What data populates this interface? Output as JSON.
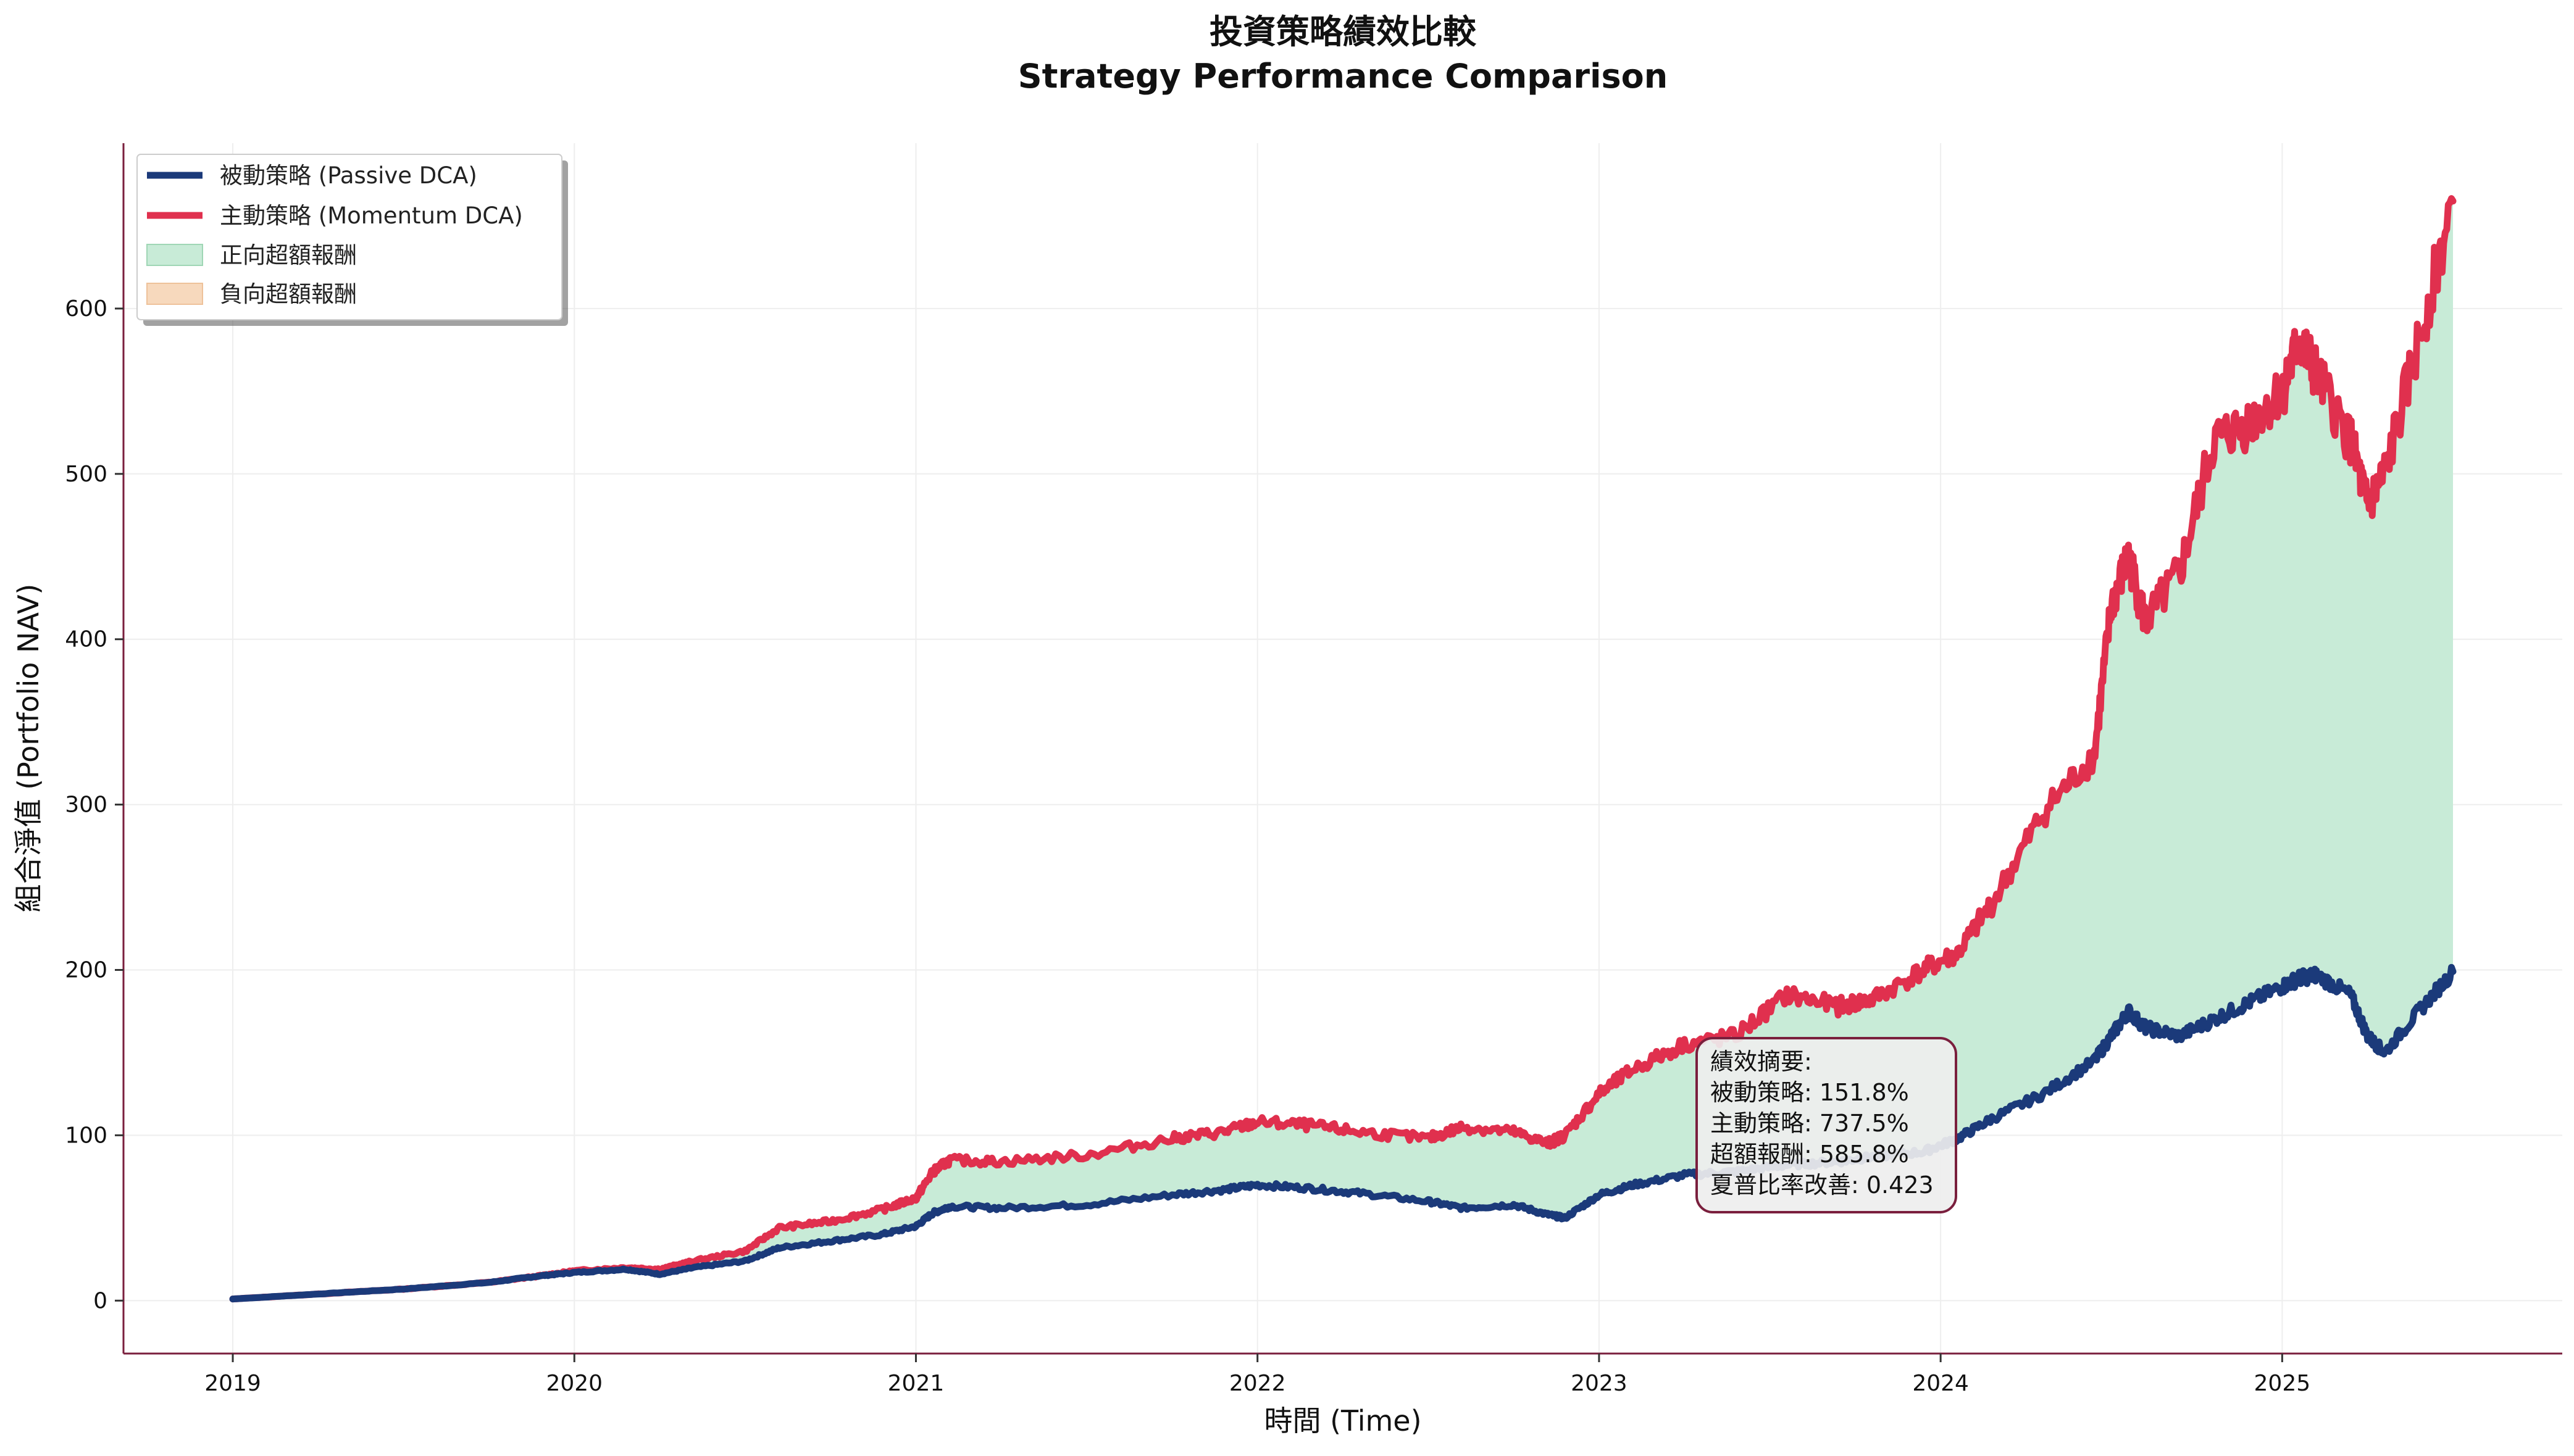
{
  "chart_data": {
    "type": "line",
    "title": "投資策略績效比較",
    "subtitle": "Strategy Performance Comparison",
    "xlabel": "時間 (Time)",
    "ylabel": "組合淨值 (Portfolio NAV)",
    "xlim": [
      2018.68,
      2025.82
    ],
    "ylim": [
      -32,
      700
    ],
    "x_ticks": [
      "2019",
      "2020",
      "2021",
      "2022",
      "2023",
      "2024",
      "2025"
    ],
    "y_ticks": [
      "0",
      "100",
      "200",
      "300",
      "400",
      "500",
      "600"
    ],
    "grid": true,
    "legend_position": "top-left",
    "legend": [
      {
        "label": "被動策略 (Passive DCA)",
        "kind": "line",
        "color": "#1b3a7a"
      },
      {
        "label": "主動策略 (Momentum DCA)",
        "kind": "line",
        "color": "#e0304e"
      },
      {
        "label": "正向超額報酬",
        "kind": "fill",
        "color": "#c8ebd7"
      },
      {
        "label": "負向超額報酬",
        "kind": "fill",
        "color": "#f7d9bd"
      }
    ],
    "series": [
      {
        "name": "被動策略 (Passive DCA)",
        "color": "#1b3a7a",
        "x": [
          2019.0,
          2019.25,
          2019.5,
          2019.75,
          2019.9,
          2020.0,
          2020.15,
          2020.25,
          2020.35,
          2020.5,
          2020.6,
          2020.75,
          2020.9,
          2021.0,
          2021.05,
          2021.1,
          2021.25,
          2021.5,
          2021.75,
          2021.9,
          2022.0,
          2022.15,
          2022.3,
          2022.5,
          2022.6,
          2022.75,
          2022.85,
          2022.9,
          2023.0,
          2023.1,
          2023.25,
          2023.4,
          2023.55,
          2023.7,
          2023.8,
          2023.95,
          2024.05,
          2024.15,
          2024.3,
          2024.45,
          2024.5,
          2024.55,
          2024.6,
          2024.7,
          2024.8,
          2024.9,
          2025.0,
          2025.05,
          2025.1,
          2025.2,
          2025.25,
          2025.3,
          2025.4,
          2025.5
        ],
        "values": [
          1,
          4,
          7,
          11,
          15,
          17,
          19,
          16,
          20,
          24,
          32,
          36,
          40,
          45,
          53,
          57,
          56,
          58,
          64,
          67,
          70,
          68,
          65,
          60,
          56,
          58,
          52,
          50,
          64,
          70,
          76,
          78,
          82,
          84,
          87,
          90,
          98,
          110,
          125,
          145,
          160,
          175,
          165,
          160,
          170,
          180,
          190,
          195,
          197,
          185,
          160,
          150,
          175,
          199
        ]
      },
      {
        "name": "主動策略 (Momentum DCA)",
        "color": "#e0304e",
        "x": [
          2019.0,
          2019.25,
          2019.5,
          2019.75,
          2019.9,
          2020.0,
          2020.15,
          2020.25,
          2020.35,
          2020.5,
          2020.6,
          2020.75,
          2020.9,
          2021.0,
          2021.05,
          2021.1,
          2021.25,
          2021.5,
          2021.75,
          2021.9,
          2022.0,
          2022.15,
          2022.3,
          2022.5,
          2022.6,
          2022.75,
          2022.85,
          2022.9,
          2023.0,
          2023.1,
          2023.25,
          2023.4,
          2023.55,
          2023.7,
          2023.8,
          2023.95,
          2024.05,
          2024.15,
          2024.3,
          2024.45,
          2024.5,
          2024.55,
          2024.6,
          2024.7,
          2024.8,
          2024.9,
          2025.0,
          2025.05,
          2025.1,
          2025.2,
          2025.25,
          2025.3,
          2025.4,
          2025.5
        ],
        "values": [
          1,
          4,
          7,
          11,
          15,
          18,
          20,
          19,
          24,
          30,
          44,
          48,
          55,
          62,
          78,
          85,
          84,
          88,
          98,
          102,
          108,
          106,
          102,
          98,
          105,
          102,
          95,
          100,
          125,
          140,
          155,
          160,
          185,
          178,
          182,
          200,
          210,
          240,
          295,
          330,
          420,
          450,
          410,
          440,
          520,
          530,
          550,
          580,
          560,
          520,
          480,
          500,
          580,
          665
        ]
      }
    ],
    "summary": {
      "heading": "績效摘要:",
      "lines": [
        "被動策略: 151.8%",
        "主動策略: 737.5%",
        "超額報酬: 585.8%",
        "夏普比率改善: 0.423"
      ]
    },
    "colors": {
      "axis": "#7a1f3d",
      "grid": "#eeeeee",
      "summary_border": "#7a1f3d",
      "summary_fill": "#eeeeee"
    }
  }
}
